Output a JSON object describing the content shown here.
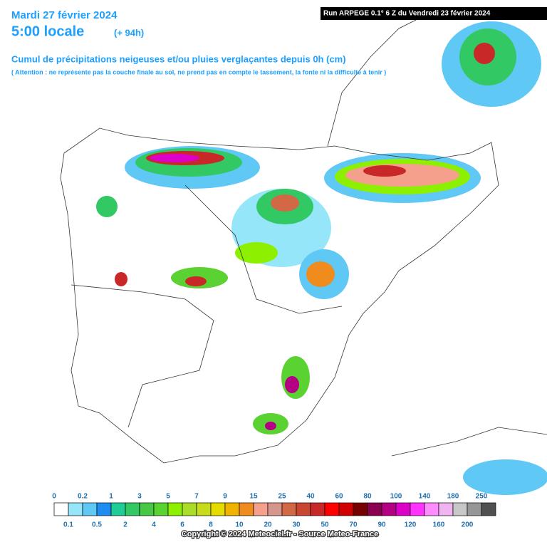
{
  "header": {
    "date": "Mardi 27 février 2024",
    "time": "5:00 locale",
    "lead": "(+ 94h)",
    "run": "Run ARPEGE 0.1° 6 Z du Vendredi 23 février 2024",
    "title": "Cumul de précipitations neigeuses et/ou pluies verglaçantes depuis 0h (cm)",
    "note": "( Attention : ne représente pas la couche finale au sol, ne prend pas en compte le tassement, la fonte ni la difficulté à tenir )"
  },
  "legend": {
    "labels": [
      "0",
      "0.1",
      "0.2",
      "0.5",
      "1",
      "2",
      "3",
      "4",
      "5",
      "6",
      "7",
      "8",
      "9",
      "10",
      "15",
      "20",
      "25",
      "30",
      "40",
      "50",
      "60",
      "70",
      "80",
      "90",
      "100",
      "120",
      "140",
      "160",
      "180",
      "200",
      "250"
    ],
    "colors": [
      "#ffffff",
      "#96e6fa",
      "#5fc8f5",
      "#1e8cf0",
      "#1ecc96",
      "#32c864",
      "#46c846",
      "#5ad232",
      "#8cf000",
      "#aadc28",
      "#c8dc1e",
      "#e6dc00",
      "#f0b400",
      "#f08c1e",
      "#f5a08c",
      "#d7968c",
      "#d26946",
      "#c84632",
      "#c82828",
      "#ff0000",
      "#d20000",
      "#780000",
      "#8c0050",
      "#b40082",
      "#dc00c8",
      "#ff32ff",
      "#ff8cff",
      "#f0b4f0",
      "#c8c8c8",
      "#969696",
      "#505050"
    ]
  },
  "footer": {
    "copyright": "Copyright © 2024 Meteociel.fr - Source Meteo-France"
  }
}
